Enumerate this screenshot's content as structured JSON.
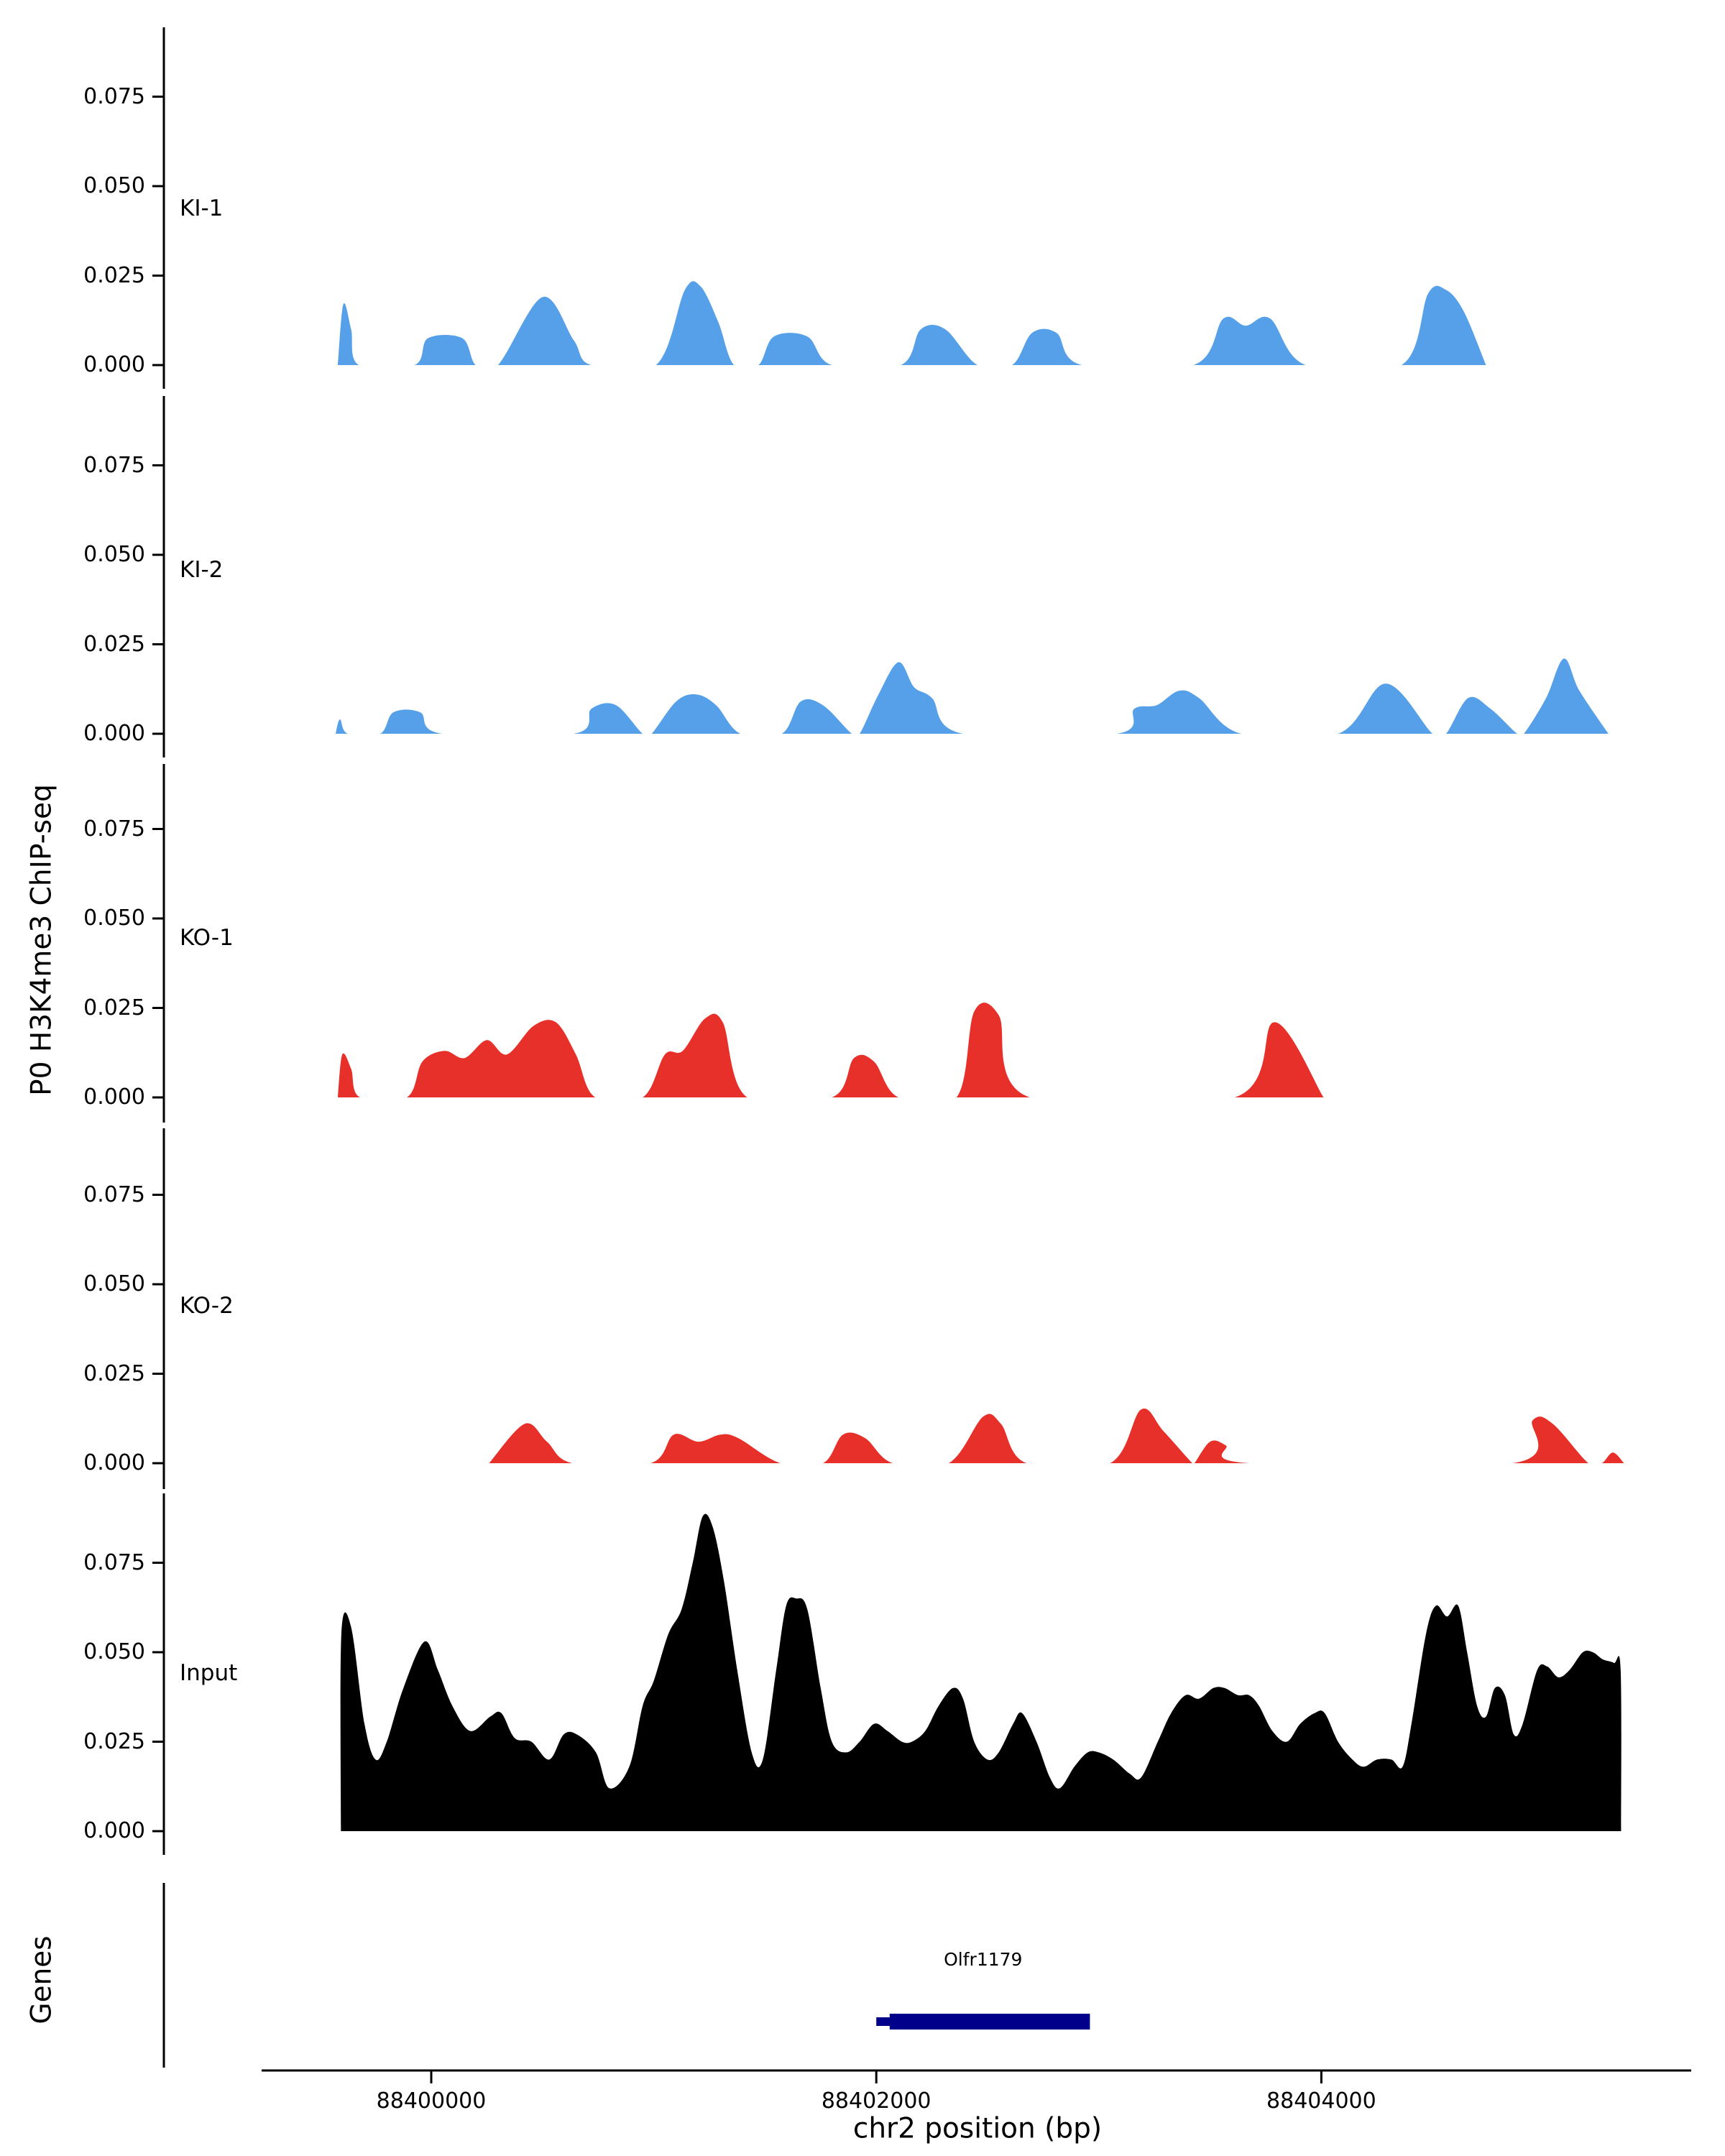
{
  "chart_data": {
    "type": "area",
    "xlabel": "chr2 position (bp)",
    "ylabel": "P0 H3K4me3 ChIP-seq",
    "genes_panel_label": "Genes",
    "xlim": [
      88399550,
      88405400
    ],
    "ylim_per_track": [
      0,
      0.09
    ],
    "grid": false,
    "x_ticks": [
      {
        "bp": 88400000,
        "label": "88400000"
      },
      {
        "bp": 88402000,
        "label": "88402000"
      },
      {
        "bp": 88404000,
        "label": "88404000"
      }
    ],
    "y_ticks": [
      {
        "value": 0.0,
        "label": "0.000"
      },
      {
        "value": 0.025,
        "label": "0.025"
      },
      {
        "value": 0.05,
        "label": "0.050"
      },
      {
        "value": 0.075,
        "label": "0.075"
      }
    ],
    "tracks": [
      {
        "name": "KI-1",
        "color": "#55A0E8",
        "points": [
          [
            88399580,
            0
          ],
          [
            88399605,
            0.017
          ],
          [
            88399640,
            0.01
          ],
          [
            88399675,
            0
          ],
          [
            88399925,
            0
          ],
          [
            88399985,
            0.0075
          ],
          [
            88400140,
            0.0075
          ],
          [
            88400200,
            0
          ],
          [
            88400300,
            0
          ],
          [
            88400500,
            0.019
          ],
          [
            88400640,
            0.007
          ],
          [
            88400719,
            0
          ],
          [
            88401010,
            0
          ],
          [
            88401140,
            0.021
          ],
          [
            88401210,
            0.022
          ],
          [
            88401290,
            0.012
          ],
          [
            88401360,
            0
          ],
          [
            88401470,
            0
          ],
          [
            88401540,
            0.008
          ],
          [
            88401690,
            0.008
          ],
          [
            88401800,
            0
          ],
          [
            88402110,
            0
          ],
          [
            88402200,
            0.01
          ],
          [
            88402310,
            0.01
          ],
          [
            88402455,
            0
          ],
          [
            88402610,
            0
          ],
          [
            88402700,
            0.009
          ],
          [
            88402810,
            0.009
          ],
          [
            88402925,
            0
          ],
          [
            88403425,
            0
          ],
          [
            88403560,
            0.013
          ],
          [
            88403660,
            0.011
          ],
          [
            88403770,
            0.013
          ],
          [
            88403930,
            0
          ],
          [
            88404360,
            0
          ],
          [
            88404480,
            0.02
          ],
          [
            88404560,
            0.021
          ],
          [
            88404640,
            0.015
          ],
          [
            88404740,
            0
          ]
        ]
      },
      {
        "name": "KI-2",
        "color": "#55A0E8",
        "points": [
          [
            88399570,
            0
          ],
          [
            88399590,
            0.004
          ],
          [
            88399625,
            0
          ],
          [
            88399770,
            0
          ],
          [
            88399830,
            0.006
          ],
          [
            88399950,
            0.006
          ],
          [
            88400050,
            0
          ],
          [
            88400640,
            0
          ],
          [
            88400720,
            0.007
          ],
          [
            88400830,
            0.008
          ],
          [
            88400950,
            0
          ],
          [
            88400990,
            0
          ],
          [
            88401100,
            0.009
          ],
          [
            88401190,
            0.011
          ],
          [
            88401280,
            0.008
          ],
          [
            88401390,
            0
          ],
          [
            88401575,
            0
          ],
          [
            88401660,
            0.009
          ],
          [
            88401760,
            0.008
          ],
          [
            88401890,
            0
          ],
          [
            88401925,
            0
          ],
          [
            88402010,
            0.011
          ],
          [
            88402100,
            0.02
          ],
          [
            88402170,
            0.013
          ],
          [
            88402250,
            0.01
          ],
          [
            88402390,
            0
          ],
          [
            88403080,
            0
          ],
          [
            88403160,
            0.007
          ],
          [
            88403260,
            0.008
          ],
          [
            88403360,
            0.012
          ],
          [
            88403450,
            0.01
          ],
          [
            88403640,
            0
          ],
          [
            88404075,
            0
          ],
          [
            88404290,
            0.014
          ],
          [
            88404500,
            0
          ],
          [
            88404560,
            0
          ],
          [
            88404660,
            0.01
          ],
          [
            88404760,
            0.007
          ],
          [
            88404880,
            0
          ],
          [
            88404910,
            0
          ],
          [
            88405010,
            0.01
          ],
          [
            88405090,
            0.021
          ],
          [
            88405160,
            0.012
          ],
          [
            88405290,
            0
          ]
        ]
      },
      {
        "name": "KO-1",
        "color": "#E8302A",
        "points": [
          [
            88399580,
            0
          ],
          [
            88399600,
            0.012
          ],
          [
            88399640,
            0.008
          ],
          [
            88399680,
            0
          ],
          [
            88399890,
            0
          ],
          [
            88399960,
            0.01
          ],
          [
            88400060,
            0.013
          ],
          [
            88400150,
            0.011
          ],
          [
            88400250,
            0.016
          ],
          [
            88400340,
            0.012
          ],
          [
            88400460,
            0.02
          ],
          [
            88400560,
            0.021
          ],
          [
            88400650,
            0.012
          ],
          [
            88400737,
            0
          ],
          [
            88400950,
            0
          ],
          [
            88401050,
            0.012
          ],
          [
            88401130,
            0.013
          ],
          [
            88401230,
            0.022
          ],
          [
            88401310,
            0.021
          ],
          [
            88401420,
            0
          ],
          [
            88401800,
            0
          ],
          [
            88401900,
            0.011
          ],
          [
            88401990,
            0.01
          ],
          [
            88402100,
            0
          ],
          [
            88402360,
            0
          ],
          [
            88402440,
            0.024
          ],
          [
            88402550,
            0.023
          ],
          [
            88402690,
            0
          ],
          [
            88403610,
            0
          ],
          [
            88403790,
            0.021
          ],
          [
            88404010,
            0
          ]
        ]
      },
      {
        "name": "KO-2",
        "color": "#E8302A",
        "points": [
          [
            88400260,
            0
          ],
          [
            88400420,
            0.011
          ],
          [
            88400520,
            0.006
          ],
          [
            88400635,
            0
          ],
          [
            88400985,
            0
          ],
          [
            88401090,
            0.008
          ],
          [
            88401200,
            0.006
          ],
          [
            88401300,
            0.008
          ],
          [
            88401380,
            0.007
          ],
          [
            88401570,
            0
          ],
          [
            88401760,
            0
          ],
          [
            88401850,
            0.008
          ],
          [
            88401950,
            0.007
          ],
          [
            88402075,
            0
          ],
          [
            88402325,
            0
          ],
          [
            88402480,
            0.013
          ],
          [
            88402560,
            0.011
          ],
          [
            88402675,
            0
          ],
          [
            88403050,
            0
          ],
          [
            88403190,
            0.015
          ],
          [
            88403290,
            0.009
          ],
          [
            88403420,
            0
          ],
          [
            88403430,
            0
          ],
          [
            88403500,
            0.006
          ],
          [
            88403570,
            0.005
          ],
          [
            88403675,
            0
          ],
          [
            88404860,
            0
          ],
          [
            88404950,
            0.012
          ],
          [
            88405040,
            0.011
          ],
          [
            88405200,
            0
          ],
          [
            88405260,
            0
          ],
          [
            88405310,
            0.003
          ],
          [
            88405360,
            0
          ]
        ]
      },
      {
        "name": "Input",
        "color": "#000000",
        "points": [
          [
            88399594,
            0
          ],
          [
            88399596,
            0.055
          ],
          [
            88399640,
            0.057
          ],
          [
            88399700,
            0.03
          ],
          [
            88399750,
            0.02
          ],
          [
            88399800,
            0.025
          ],
          [
            88399875,
            0.04
          ],
          [
            88399970,
            0.053
          ],
          [
            88400030,
            0.045
          ],
          [
            88400095,
            0.035
          ],
          [
            88400175,
            0.028
          ],
          [
            88400265,
            0.032
          ],
          [
            88400315,
            0.033
          ],
          [
            88400375,
            0.026
          ],
          [
            88400450,
            0.025
          ],
          [
            88400530,
            0.02
          ],
          [
            88400595,
            0.027
          ],
          [
            88400655,
            0.027
          ],
          [
            88400740,
            0.022
          ],
          [
            88400800,
            0.012
          ],
          [
            88400890,
            0.018
          ],
          [
            88400950,
            0.035
          ],
          [
            88401000,
            0.042
          ],
          [
            88401065,
            0.055
          ],
          [
            88401125,
            0.062
          ],
          [
            88401175,
            0.075
          ],
          [
            88401220,
            0.088
          ],
          [
            88401265,
            0.085
          ],
          [
            88401315,
            0.07
          ],
          [
            88401375,
            0.045
          ],
          [
            88401440,
            0.022
          ],
          [
            88401490,
            0.02
          ],
          [
            88401550,
            0.045
          ],
          [
            88401595,
            0.063
          ],
          [
            88401640,
            0.065
          ],
          [
            88401690,
            0.062
          ],
          [
            88401750,
            0.04
          ],
          [
            88401800,
            0.025
          ],
          [
            88401865,
            0.022
          ],
          [
            88401925,
            0.025
          ],
          [
            88401990,
            0.03
          ],
          [
            88402050,
            0.028
          ],
          [
            88402115,
            0.025
          ],
          [
            88402160,
            0.025
          ],
          [
            88402220,
            0.028
          ],
          [
            88402280,
            0.035
          ],
          [
            88402345,
            0.04
          ],
          [
            88402390,
            0.037
          ],
          [
            88402440,
            0.025
          ],
          [
            88402500,
            0.02
          ],
          [
            88402550,
            0.022
          ],
          [
            88402615,
            0.03
          ],
          [
            88402655,
            0.033
          ],
          [
            88402720,
            0.025
          ],
          [
            88402780,
            0.015
          ],
          [
            88402825,
            0.012
          ],
          [
            88402890,
            0.018
          ],
          [
            88402950,
            0.022
          ],
          [
            88403000,
            0.022
          ],
          [
            88403065,
            0.02
          ],
          [
            88403140,
            0.016
          ],
          [
            88403190,
            0.015
          ],
          [
            88403265,
            0.025
          ],
          [
            88403325,
            0.033
          ],
          [
            88403390,
            0.038
          ],
          [
            88403450,
            0.037
          ],
          [
            88403515,
            0.04
          ],
          [
            88403565,
            0.04
          ],
          [
            88403625,
            0.038
          ],
          [
            88403675,
            0.038
          ],
          [
            88403720,
            0.035
          ],
          [
            88403780,
            0.028
          ],
          [
            88403845,
            0.025
          ],
          [
            88403905,
            0.03
          ],
          [
            88403970,
            0.033
          ],
          [
            88404015,
            0.033
          ],
          [
            88404075,
            0.025
          ],
          [
            88404140,
            0.02
          ],
          [
            88404190,
            0.018
          ],
          [
            88404250,
            0.02
          ],
          [
            88404315,
            0.02
          ],
          [
            88404365,
            0.018
          ],
          [
            88404405,
            0.03
          ],
          [
            88404470,
            0.055
          ],
          [
            88404515,
            0.063
          ],
          [
            88404565,
            0.06
          ],
          [
            88404615,
            0.063
          ],
          [
            88404655,
            0.05
          ],
          [
            88404700,
            0.035
          ],
          [
            88404740,
            0.032
          ],
          [
            88404780,
            0.04
          ],
          [
            88404825,
            0.038
          ],
          [
            88404865,
            0.027
          ],
          [
            88404905,
            0.03
          ],
          [
            88404970,
            0.045
          ],
          [
            88405015,
            0.046
          ],
          [
            88405065,
            0.043
          ],
          [
            88405115,
            0.045
          ],
          [
            88405175,
            0.05
          ],
          [
            88405220,
            0.05
          ],
          [
            88405265,
            0.048
          ],
          [
            88405315,
            0.047
          ],
          [
            88405345,
            0.045
          ],
          [
            88405347,
            0
          ]
        ]
      }
    ],
    "genes": [
      {
        "name": "Olfr1179",
        "start": 88402000,
        "thick_start": 88402060,
        "end": 88402960,
        "color": "#00008B"
      }
    ]
  }
}
